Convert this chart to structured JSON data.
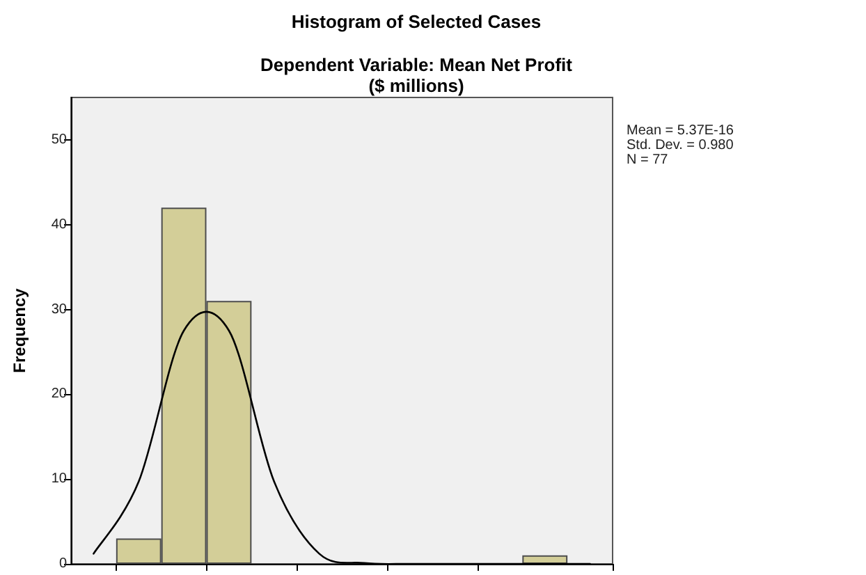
{
  "chart_data": {
    "type": "histogram",
    "title": "Histogram of Selected Cases",
    "subtitle": "Dependent Variable: Mean Net Profit\n($ millions)",
    "ylabel": "Frequency",
    "annotations": [
      "Mean = 5.37E-16",
      "Std. Dev. = 0.980",
      "N = 77"
    ],
    "categories": [
      null,
      null,
      null,
      null,
      null,
      null,
      null,
      null,
      null,
      null,
      null,
      null
    ],
    "series": [
      {
        "color": "#d3ce98",
        "values": [
          0,
          3,
          42,
          31,
          0,
          0,
          0,
          0,
          0,
          0,
          1,
          0
        ]
      },
      {
        "type": "line",
        "color": "#000000",
        "values": [
          1.2,
          9.7,
          27.5,
          27.5,
          9.7,
          1.2,
          0.1,
          0,
          0,
          0,
          0,
          0
        ]
      }
    ],
    "ylim": [
      0,
      55
    ],
    "yticks": [
      0,
      10,
      20,
      30,
      40,
      50
    ],
    "tick_labels": "y",
    "marker": "none"
  }
}
